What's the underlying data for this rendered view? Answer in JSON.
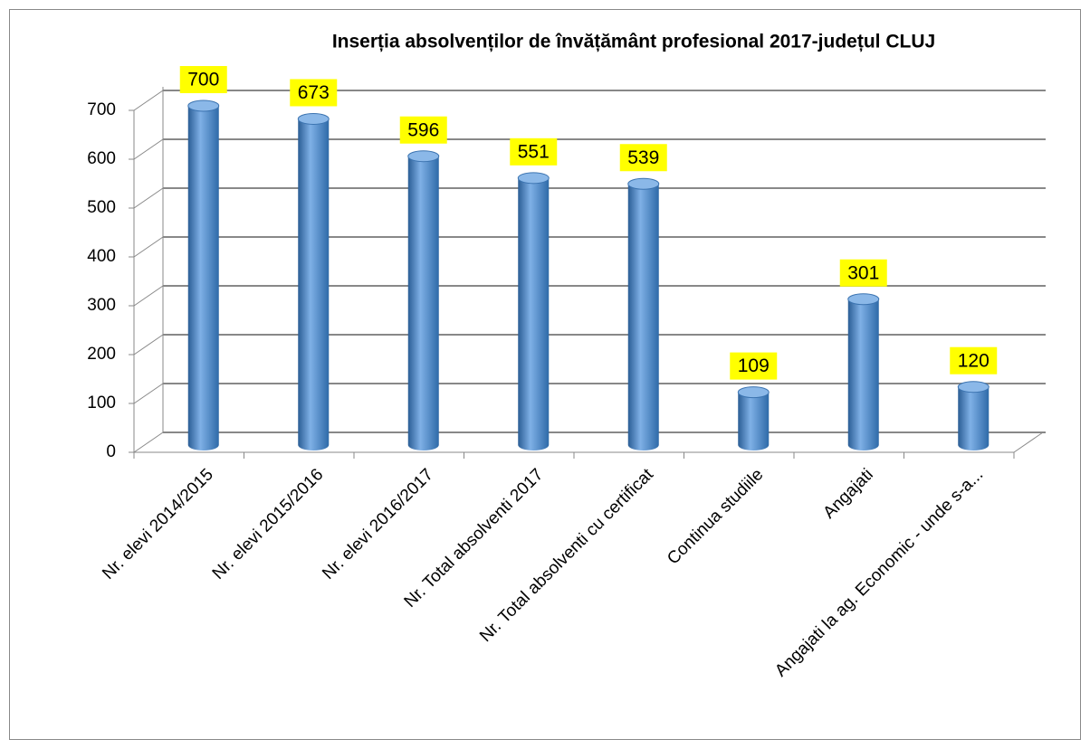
{
  "chart_data": {
    "type": "bar",
    "title": "Inserția absolvenților de învățământ profesional  2017-județul CLUJ",
    "categories": [
      "Nr. elevi 2014/2015",
      "Nr. elevi 2015/2016",
      "Nr. elevi 2016/2017",
      "Nr. Total absolventi 2017",
      "Nr. Total absolventi cu certificat",
      "Continua studiile",
      "Angajati",
      "Angajati  la ag. Economic - unde s-a..."
    ],
    "values": [
      700,
      673,
      596,
      551,
      539,
      109,
      301,
      120
    ],
    "color": "#4a86c8",
    "label_color": "#ffff00",
    "ylim": [
      0,
      700
    ],
    "yticks": [
      0,
      100,
      200,
      300,
      400,
      500,
      600,
      700
    ],
    "grid": true
  }
}
